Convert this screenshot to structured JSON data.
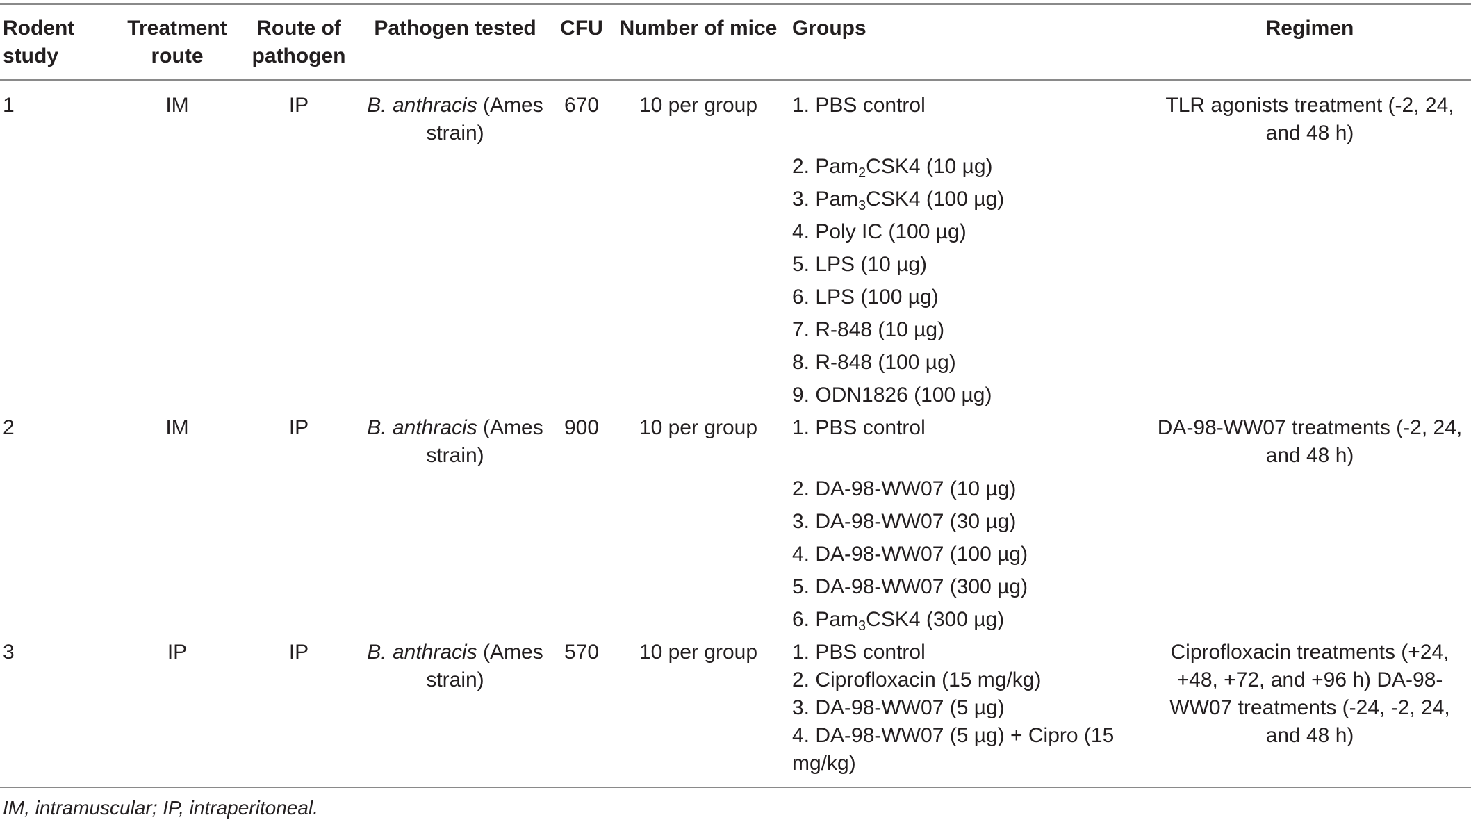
{
  "headers": {
    "rodent_study": "Rodent study",
    "treatment_route": "Treatment route",
    "route_of_pathogen": "Route of pathogen",
    "pathogen_tested": "Pathogen tested",
    "cfu": "CFU",
    "number_of_mice": "Number of mice",
    "groups": "Groups",
    "regimen": "Regimen"
  },
  "rows": [
    {
      "study": "1",
      "treatment_route": "IM",
      "route_of_pathogen": "IP",
      "pathogen_species": "B. anthracis",
      "pathogen_rest": " (Ames strain)",
      "cfu": "670",
      "mice": "10 per group",
      "regimen": "TLR agonists treatment (-2, 24, and 48 h)",
      "groups": [
        {
          "pre": "1. PBS control",
          "sub": "",
          "post": ""
        },
        {
          "pre": "2. Pam",
          "sub": "2",
          "post": "CSK4 (10 µg)"
        },
        {
          "pre": "3. Pam",
          "sub": "3",
          "post": "CSK4 (100 µg)"
        },
        {
          "pre": "4. Poly IC (100 µg)",
          "sub": "",
          "post": ""
        },
        {
          "pre": "5. LPS (10 µg)",
          "sub": "",
          "post": ""
        },
        {
          "pre": "6. LPS (100 µg)",
          "sub": "",
          "post": ""
        },
        {
          "pre": "7. R-848 (10 µg)",
          "sub": "",
          "post": ""
        },
        {
          "pre": "8. R-848 (100 µg)",
          "sub": "",
          "post": ""
        },
        {
          "pre": "9. ODN1826 (100 µg)",
          "sub": "",
          "post": ""
        }
      ]
    },
    {
      "study": "2",
      "treatment_route": "IM",
      "route_of_pathogen": "IP",
      "pathogen_species": "B. anthracis",
      "pathogen_rest": " (Ames strain)",
      "cfu": "900",
      "mice": "10 per group",
      "regimen": "DA-98-WW07 treatments (-2, 24, and 48 h)",
      "groups": [
        {
          "pre": "1. PBS control",
          "sub": "",
          "post": ""
        },
        {
          "pre": "2. DA-98-WW07 (10 µg)",
          "sub": "",
          "post": ""
        },
        {
          "pre": "3. DA-98-WW07 (30 µg)",
          "sub": "",
          "post": ""
        },
        {
          "pre": "4. DA-98-WW07 (100 µg)",
          "sub": "",
          "post": ""
        },
        {
          "pre": "5. DA-98-WW07 (300 µg)",
          "sub": "",
          "post": ""
        },
        {
          "pre": "6. Pam",
          "sub": "3",
          "post": "CSK4 (300 µg)"
        }
      ]
    },
    {
      "study": "3",
      "treatment_route": "IP",
      "route_of_pathogen": "IP",
      "pathogen_species": "B. anthracis",
      "pathogen_rest": " (Ames strain)",
      "cfu": "570",
      "mice": "10 per group",
      "regimen": "Ciprofloxacin treatments (+24, +48, +72, and +96 h) DA-98-WW07 treatments (-24, -2, 24, and 48 h)",
      "groups": [
        {
          "pre": "1. PBS control",
          "sub": "",
          "post": ""
        },
        {
          "pre": "2. Ciprofloxacin (15 mg/kg)",
          "sub": "",
          "post": ""
        },
        {
          "pre": "3. DA-98-WW07 (5 µg)",
          "sub": "",
          "post": ""
        },
        {
          "pre": "4. DA-98-WW07 (5 µg) + Cipro (15 mg/kg)",
          "sub": "",
          "post": ""
        }
      ]
    }
  ],
  "footnote": "IM, intramuscular; IP, intraperitoneal."
}
